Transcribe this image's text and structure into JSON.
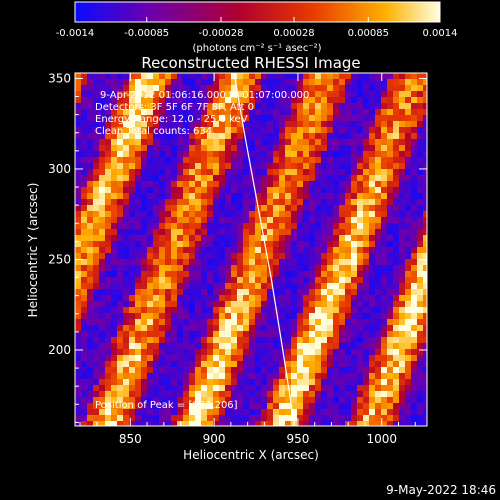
{
  "colorbar": {
    "labels": [
      "-0.0014",
      "-0.00085",
      "-0.00028",
      "0.00028",
      "0.00085",
      "0.0014"
    ],
    "range": [
      -0.0014,
      0.0014
    ],
    "colors": [
      "#0a0aff",
      "#6a00b0",
      "#b00030",
      "#e83a00",
      "#ffb000",
      "#ffffe0"
    ]
  },
  "units_label": "(photons cm⁻² s⁻¹ asec⁻²)",
  "info": {
    "line1": "9-Apr-2012 01:06:16.000 to 01:07:00.000",
    "line2": "Detectors: 3F 5F 6F 7F 8F, Att 0",
    "line3": "Energy Range: 12.0 - 25.0 keV",
    "line4": "Clean    Total counts: 634.",
    "peak": "Position of Peak = [893,206]"
  },
  "timestamp": "9-May-2022 18:46",
  "chart_data": {
    "type": "heatmap",
    "title": "Reconstructed RHESSI Image",
    "xlabel": "Heliocentric X (arcsec)",
    "ylabel": "Heliocentric Y (arcsec)",
    "xlim": [
      817,
      1027
    ],
    "ylim": [
      158,
      353
    ],
    "x_ticks": [
      850,
      900,
      950,
      1000
    ],
    "y_ticks": [
      200,
      250,
      300,
      350
    ],
    "x_tick_labels": [
      "850",
      "900",
      "950",
      "1000"
    ],
    "y_tick_labels": [
      "200",
      "250",
      "300",
      "350"
    ],
    "peak": [
      893,
      206
    ],
    "limb_curve": {
      "x": [
        912,
        918,
        926,
        934,
        941,
        948
      ],
      "y": [
        353,
        320,
        280,
        240,
        200,
        158
      ]
    }
  }
}
